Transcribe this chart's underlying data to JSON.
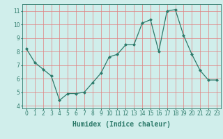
{
  "x": [
    0,
    1,
    2,
    3,
    4,
    5,
    6,
    7,
    8,
    9,
    10,
    11,
    12,
    13,
    14,
    15,
    16,
    17,
    18,
    19,
    20,
    21,
    22,
    23
  ],
  "y": [
    8.2,
    7.2,
    6.7,
    6.2,
    4.4,
    4.9,
    4.9,
    5.0,
    5.7,
    6.4,
    7.6,
    7.8,
    8.5,
    8.5,
    10.1,
    10.35,
    8.0,
    11.0,
    11.1,
    9.2,
    7.8,
    6.6,
    5.9,
    5.9
  ],
  "xlim": [
    -0.5,
    23.5
  ],
  "ylim": [
    3.8,
    11.5
  ],
  "yticks": [
    4,
    5,
    6,
    7,
    8,
    9,
    10,
    11
  ],
  "xticks": [
    0,
    1,
    2,
    3,
    4,
    5,
    6,
    7,
    8,
    9,
    10,
    11,
    12,
    13,
    14,
    15,
    16,
    17,
    18,
    19,
    20,
    21,
    22,
    23
  ],
  "xlabel": "Humidex (Indice chaleur)",
  "line_color": "#2d7a6a",
  "marker": "D",
  "marker_size": 2.0,
  "line_width": 0.9,
  "bg_color": "#d0eeeb",
  "grid_color": "#e08080",
  "tick_color": "#2d7a6a",
  "tick_fontsize": 5.5,
  "xlabel_fontsize": 7.0,
  "xlabel_color": "#2d7a6a"
}
